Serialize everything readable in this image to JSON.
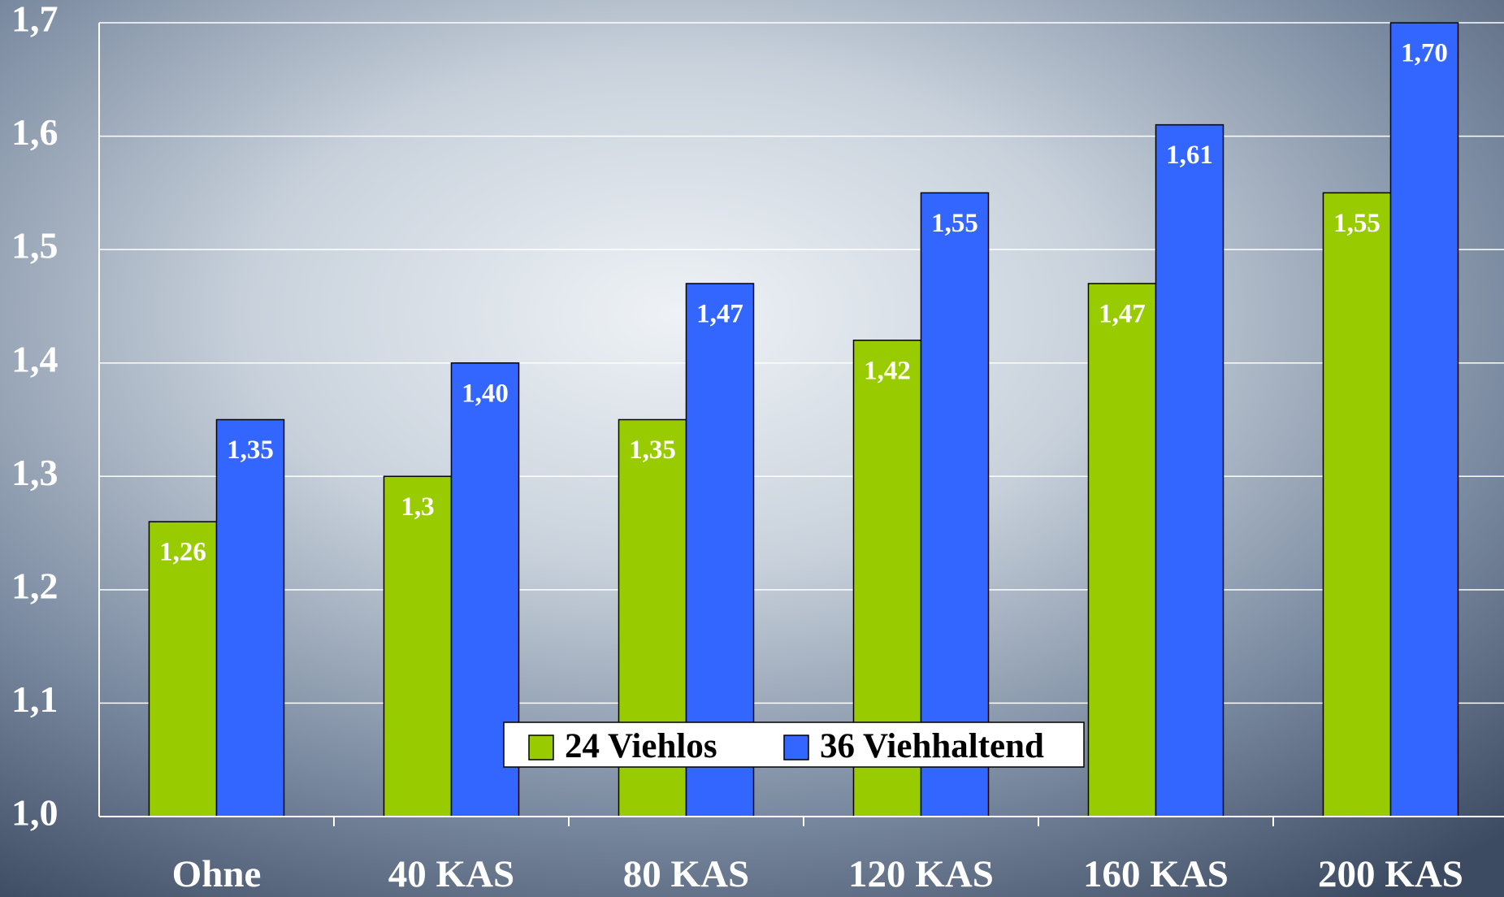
{
  "chart_data": {
    "type": "bar",
    "categories": [
      "Ohne",
      "40 KAS",
      "80 KAS",
      "120 KAS",
      "160 KAS",
      "200 KAS"
    ],
    "series": [
      {
        "name": "24 Viehlos",
        "color": "#99cc00",
        "values": [
          1.26,
          1.3,
          1.35,
          1.42,
          1.47,
          1.55
        ],
        "value_labels": [
          "1,26",
          "1,3",
          "1,35",
          "1,42",
          "1,47",
          "1,55"
        ]
      },
      {
        "name": "36 Viehhaltend",
        "color": "#3366ff",
        "values": [
          1.35,
          1.4,
          1.47,
          1.55,
          1.61,
          1.7
        ],
        "value_labels": [
          "1,35",
          "1,40",
          "1,47",
          "1,55",
          "1,61",
          "1,70"
        ]
      }
    ],
    "ylim": [
      1.0,
      1.7
    ],
    "yticks": [
      {
        "value": 1.0,
        "label": "1,0"
      },
      {
        "value": 1.1,
        "label": "1,1"
      },
      {
        "value": 1.2,
        "label": "1,2"
      },
      {
        "value": 1.3,
        "label": "1,3"
      },
      {
        "value": 1.4,
        "label": "1,4"
      },
      {
        "value": 1.5,
        "label": "1,5"
      },
      {
        "value": 1.6,
        "label": "1,6"
      },
      {
        "value": 1.7,
        "label": "1,7"
      }
    ],
    "grid": true
  }
}
